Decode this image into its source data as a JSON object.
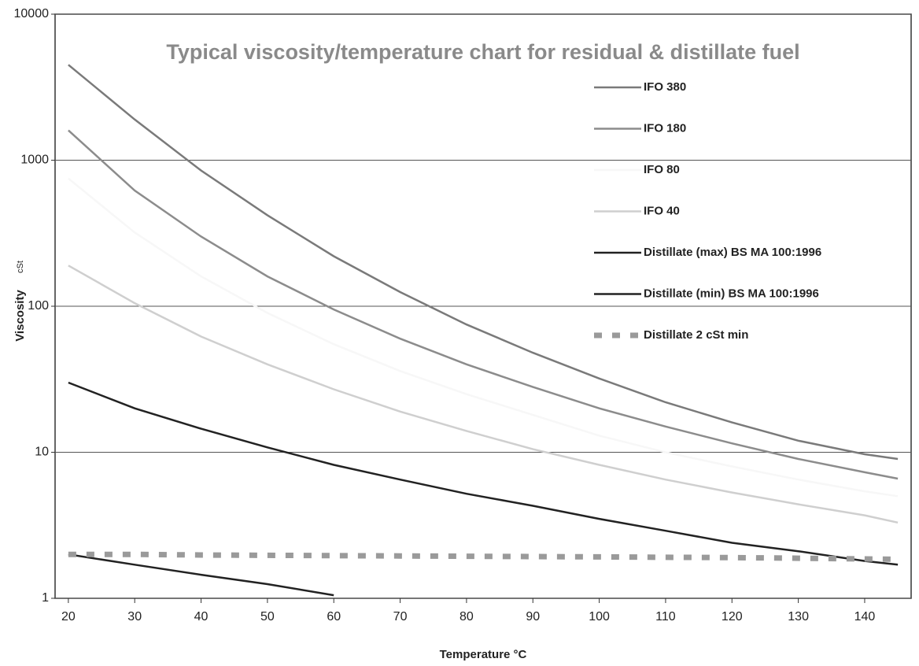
{
  "chart_data": {
    "type": "line",
    "title": "Typical viscosity/temperature chart for residual & distillate fuel",
    "x_label": "Temperature °C",
    "y_label": "Viscosity",
    "y_label_unit": "cSt",
    "x": [
      20,
      30,
      40,
      50,
      60,
      70,
      80,
      90,
      100,
      110,
      120,
      130,
      140,
      145
    ],
    "xlim": [
      18,
      147
    ],
    "xticks": [
      20,
      30,
      40,
      50,
      60,
      70,
      80,
      90,
      100,
      110,
      120,
      130,
      140
    ],
    "ylim": [
      1,
      10000
    ],
    "yticks": [
      1,
      10,
      100,
      1000,
      10000
    ],
    "log_y": true,
    "grid": true,
    "legend": "upper right",
    "series": [
      {
        "name": "IFO 380",
        "color": "#7a7a7a",
        "style": "solid",
        "values": [
          4500,
          1900,
          850,
          420,
          220,
          125,
          75,
          48,
          32,
          22,
          16,
          12,
          9.7,
          9
        ]
      },
      {
        "name": "IFO 180",
        "color": "#8c8c8c",
        "style": "solid",
        "values": [
          1600,
          620,
          300,
          160,
          95,
          60,
          40,
          28,
          20,
          15,
          11.5,
          9,
          7.3,
          6.6
        ]
      },
      {
        "name": "IFO 80",
        "color": "#f7f7f7",
        "style": "solid",
        "values": [
          750,
          320,
          160,
          90,
          55,
          36,
          25,
          18,
          13,
          10,
          8,
          6.5,
          5.4,
          5
        ]
      },
      {
        "name": "IFO 40",
        "color": "#cfcfcf",
        "style": "solid",
        "values": [
          190,
          105,
          62,
          40,
          27,
          19,
          14,
          10.5,
          8.2,
          6.5,
          5.3,
          4.4,
          3.7,
          3.3
        ]
      },
      {
        "name": "Distillate (max) BS MA 100:1996",
        "color": "#222222",
        "style": "solid",
        "values": [
          30,
          20,
          14.5,
          10.8,
          8.2,
          6.5,
          5.2,
          4.3,
          3.5,
          2.9,
          2.4,
          2.1,
          1.8,
          1.7
        ]
      },
      {
        "name": "Distillate (min) BS MA 100:1996",
        "color": "#222222",
        "style": "solid",
        "values": [
          2,
          1.7,
          1.45,
          1.25,
          1.05,
          null,
          null,
          null,
          null,
          null,
          null,
          null,
          null,
          null
        ]
      },
      {
        "name": "Distillate  2 cSt min",
        "color": "#9a9a9a",
        "style": "dashed",
        "values": [
          2,
          2,
          1.98,
          1.97,
          1.96,
          1.95,
          1.94,
          1.93,
          1.92,
          1.91,
          1.9,
          1.88,
          1.86,
          1.85
        ]
      }
    ]
  }
}
